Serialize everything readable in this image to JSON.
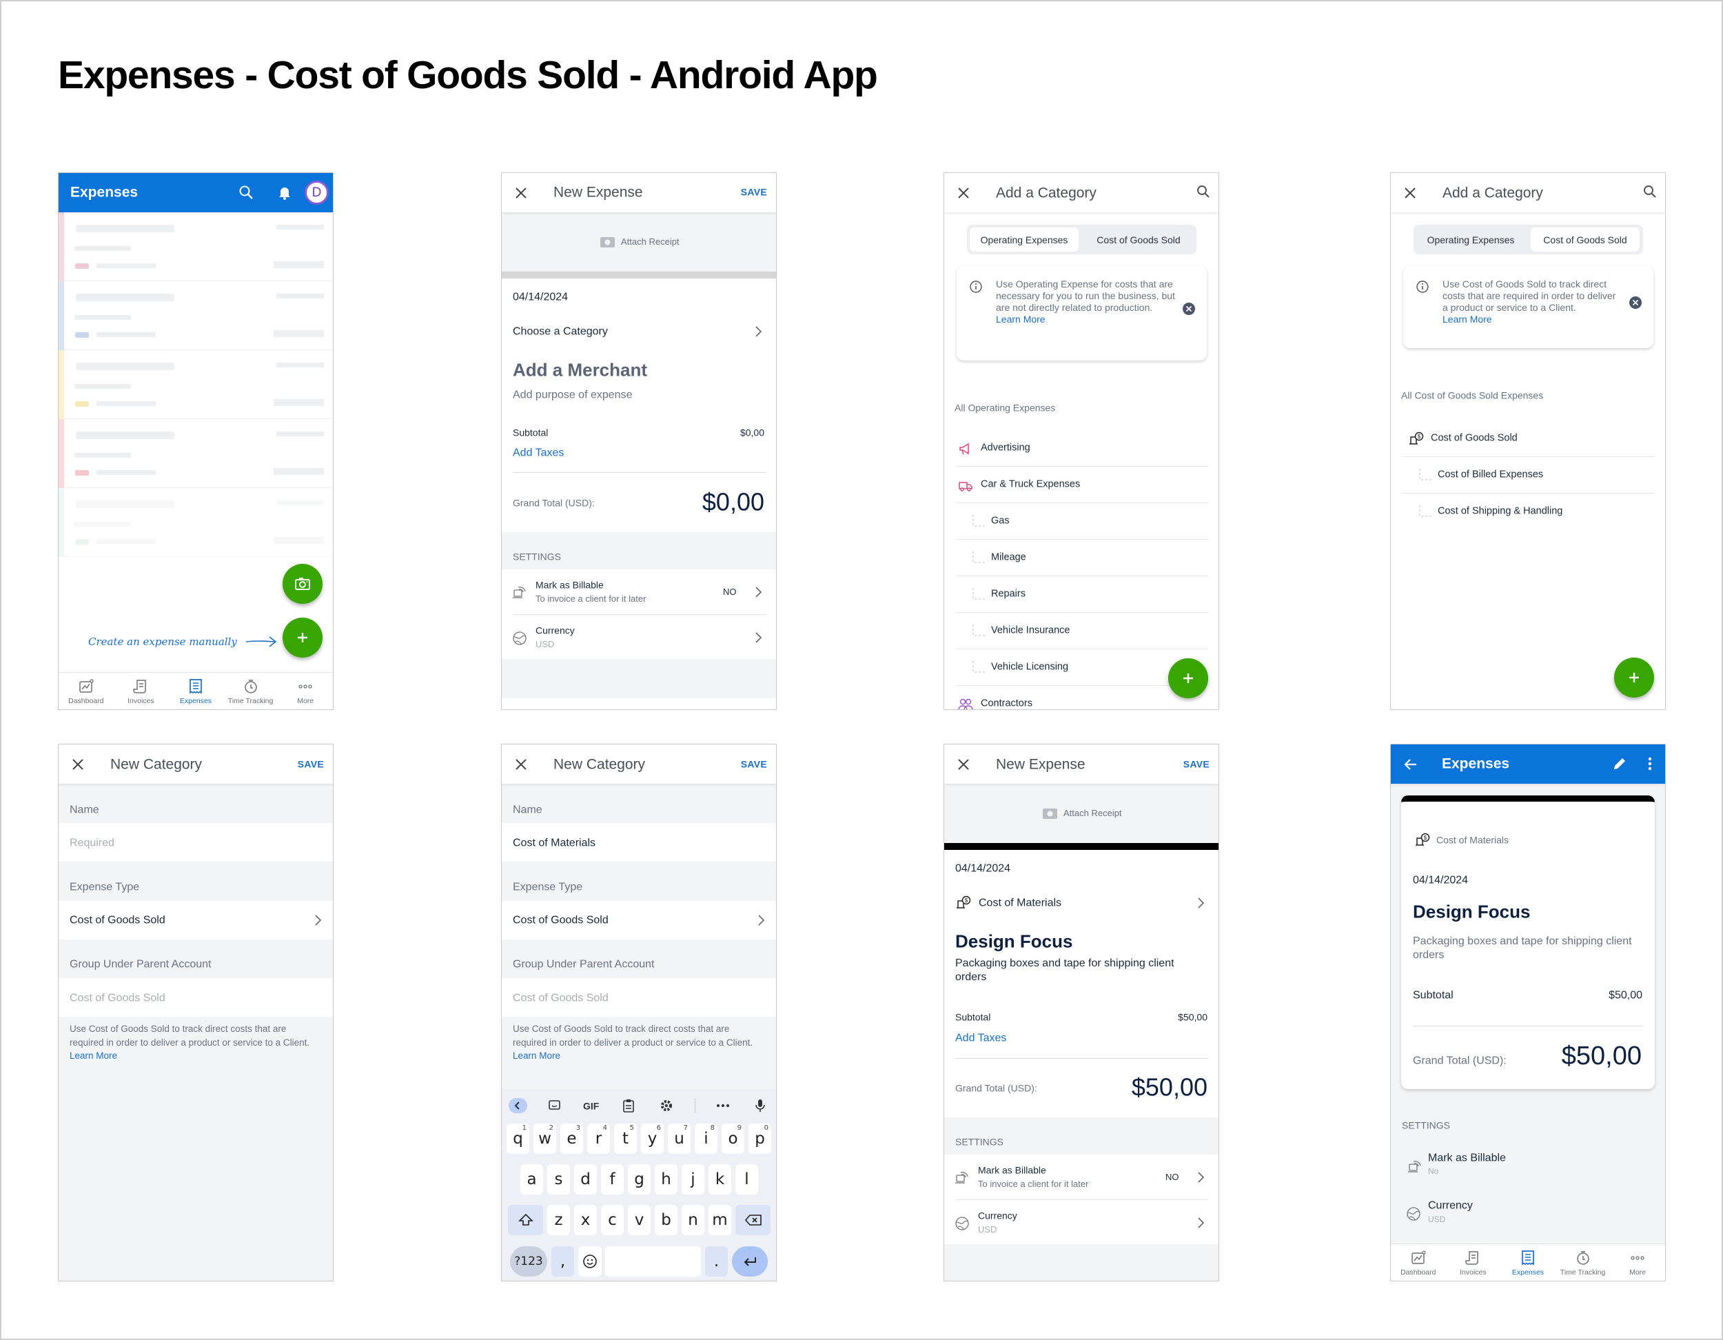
{
  "page_title": "Expenses - Cost of Goods Sold - Android App",
  "colors": {
    "brand_blue": "#0a74da",
    "link_blue": "#1a6fc4",
    "fab_green": "#39a500",
    "navy_text": "#0d2040",
    "avatar_purple": "#6b3fc4",
    "skeleton_stripes": [
      "#f5d9e3",
      "#d9e3f5",
      "#fbf1d0",
      "#fbd9df",
      "#e0f0ea"
    ],
    "skeleton_chips": [
      "#f2c9d6",
      "#c9d6f2",
      "#f7e9b8",
      "#f7c6cf",
      "#d4ebe0"
    ]
  },
  "nav": {
    "items": [
      {
        "label": "Dashboard",
        "icon": "dashboard-icon"
      },
      {
        "label": "Invoices",
        "icon": "invoice-icon"
      },
      {
        "label": "Expenses",
        "icon": "expenses-icon"
      },
      {
        "label": "Time Tracking",
        "icon": "timer-icon"
      },
      {
        "label": "More",
        "icon": "more-icon"
      }
    ],
    "active": "Expenses"
  },
  "s1": {
    "title": "Expenses",
    "avatar": "D",
    "annotation": "Create an expense manually"
  },
  "s2": {
    "title": "New Expense",
    "save": "SAVE",
    "attach": "Attach Receipt",
    "date": "04/14/2024",
    "category": "Choose a Category",
    "merchant": "Add a Merchant",
    "purpose": "Add purpose of expense",
    "subtotal_label": "Subtotal",
    "subtotal": "$0,00",
    "add_taxes": "Add Taxes",
    "grand_label": "Grand Total (USD):",
    "grand": "$0,00",
    "settings": "SETTINGS",
    "billable_title": "Mark as Billable",
    "billable_sub": "To invoice a client for it later",
    "billable_value": "NO",
    "currency_title": "Currency",
    "currency_value": "USD"
  },
  "s3": {
    "title": "Add a Category",
    "tabs": [
      "Operating Expenses",
      "Cost of Goods Sold"
    ],
    "active_tab": "Operating Expenses",
    "info": "Use Operating Expense for costs that are necessary for you to run the business, but are not directly related to production.",
    "learn_more": "Learn More",
    "section": "All Operating Expenses",
    "items": [
      {
        "label": "Advertising",
        "level": 0,
        "icon": "megaphone-icon"
      },
      {
        "label": "Car & Truck Expenses",
        "level": 0,
        "icon": "truck-icon"
      },
      {
        "label": "Gas",
        "level": 1
      },
      {
        "label": "Mileage",
        "level": 1
      },
      {
        "label": "Repairs",
        "level": 1
      },
      {
        "label": "Vehicle Insurance",
        "level": 1
      },
      {
        "label": "Vehicle Licensing",
        "level": 1
      },
      {
        "label": "Contractors",
        "level": 0,
        "icon": "people-icon"
      }
    ]
  },
  "s4": {
    "title": "Add a Category",
    "tabs": [
      "Operating Expenses",
      "Cost of Goods Sold"
    ],
    "active_tab": "Cost of Goods Sold",
    "info": "Use Cost of Goods Sold to track direct costs that are required in order to deliver a product or service to a Client.",
    "learn_more": "Learn More",
    "section": "All Cost of Goods Sold Expenses",
    "items": [
      {
        "label": "Cost of Goods Sold",
        "level": 0,
        "icon": "cogs-icon"
      },
      {
        "label": "Cost of Billed Expenses",
        "level": 1
      },
      {
        "label": "Cost of Shipping & Handling",
        "level": 1
      }
    ]
  },
  "s5": {
    "title": "New Category",
    "save": "SAVE",
    "name_label": "Name",
    "name_placeholder": "Required",
    "type_label": "Expense Type",
    "type_value": "Cost of Goods Sold",
    "parent_label": "Group Under Parent Account",
    "parent_placeholder": "Cost of Goods Sold",
    "help": "Use Cost of Goods Sold to track direct costs that are required in order to deliver a product or service to a Client.",
    "learn_more": "Learn More"
  },
  "s6": {
    "title": "New Category",
    "save": "SAVE",
    "name_label": "Name",
    "name_value": "Cost of Materials",
    "type_label": "Expense Type",
    "type_value": "Cost of Goods Sold",
    "parent_label": "Group Under Parent Account",
    "parent_placeholder": "Cost of Goods Sold",
    "help": "Use Cost of Goods Sold to track direct costs that are required in order to deliver a product or service to a Client.",
    "learn_more": "Learn More",
    "keyboard": {
      "toolbar_gif": "GIF",
      "row1": [
        "q",
        "w",
        "e",
        "r",
        "t",
        "y",
        "u",
        "i",
        "o",
        "p"
      ],
      "row1_hints": [
        "1",
        "2",
        "3",
        "4",
        "5",
        "6",
        "7",
        "8",
        "9",
        "0"
      ],
      "row2": [
        "a",
        "s",
        "d",
        "f",
        "g",
        "h",
        "j",
        "k",
        "l"
      ],
      "row3": [
        "z",
        "x",
        "c",
        "v",
        "b",
        "n",
        "m"
      ],
      "symbols": "?123",
      "comma": ",",
      "period": "."
    }
  },
  "s7": {
    "title": "New Expense",
    "save": "SAVE",
    "attach": "Attach Receipt",
    "date": "04/14/2024",
    "category": "Cost of Materials",
    "merchant": "Design Focus",
    "purpose": "Packaging boxes and tape for shipping client orders",
    "subtotal_label": "Subtotal",
    "subtotal": "$50,00",
    "add_taxes": "Add Taxes",
    "grand_label": "Grand Total (USD):",
    "grand": "$50,00",
    "settings": "SETTINGS",
    "billable_title": "Mark as Billable",
    "billable_sub": "To invoice a client for it later",
    "billable_value": "NO",
    "currency_title": "Currency",
    "currency_value": "USD"
  },
  "s8": {
    "title": "Expenses",
    "category": "Cost of Materials",
    "date": "04/14/2024",
    "merchant": "Design Focus",
    "purpose": "Packaging boxes and tape for shipping client orders",
    "subtotal_label": "Subtotal",
    "subtotal": "$50,00",
    "grand_label": "Grand Total (USD):",
    "grand": "$50,00",
    "settings": "SETTINGS",
    "billable_title": "Mark as Billable",
    "billable_value": "No",
    "currency_title": "Currency",
    "currency_value": "USD"
  }
}
